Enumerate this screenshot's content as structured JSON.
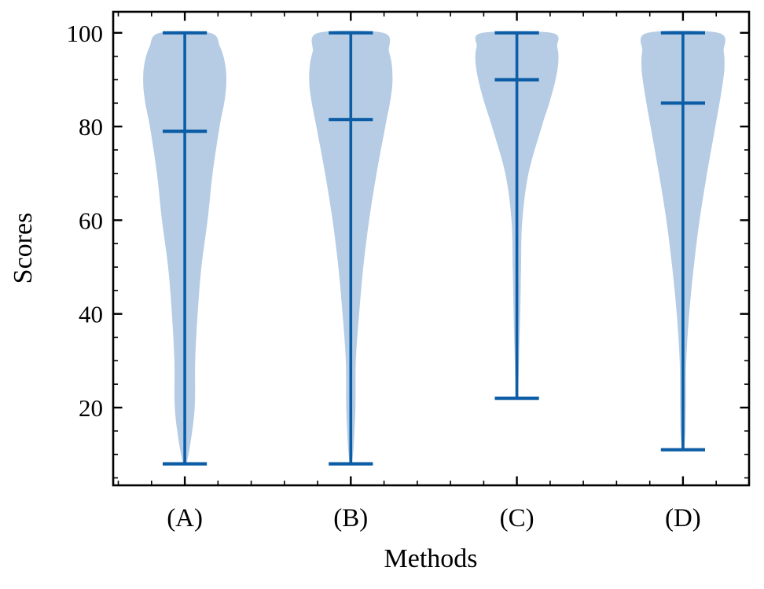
{
  "figure": {
    "xlabel": "Methods",
    "ylabel": "Scores"
  },
  "chart_data": {
    "type": "violin",
    "title": "",
    "xlabel": "Methods",
    "ylabel": "Scores",
    "categories": [
      "(A)",
      "(B)",
      "(C)",
      "(D)"
    ],
    "x_positions": [
      1,
      2,
      3,
      4
    ],
    "y_ticks_major": [
      20,
      40,
      60,
      80,
      100
    ],
    "y_minor_step": 5,
    "x_minor_step": 0.2,
    "xlim": [
      0.569,
      4.398
    ],
    "ylim": [
      3.4,
      104.5
    ],
    "grid": false,
    "legend": null,
    "tick_style": "inward-all-sides",
    "colors": {
      "line": "#0C5DA5",
      "fill": "#B5CCE4",
      "axis": "#000000",
      "background": "#FFFFFF"
    },
    "violin_max_halfwidth": 0.25,
    "cap_halfwidth": 0.133,
    "series": [
      {
        "category": "(A)",
        "position": 1,
        "min": 8,
        "max": 100,
        "mean": 79,
        "profile": [
          [
            8,
            0.04
          ],
          [
            12,
            0.13
          ],
          [
            20,
            0.24
          ],
          [
            30,
            0.25
          ],
          [
            40,
            0.31
          ],
          [
            50,
            0.4
          ],
          [
            60,
            0.55
          ],
          [
            70,
            0.67
          ],
          [
            80,
            0.84
          ],
          [
            85,
            0.95
          ],
          [
            89,
            1.0
          ],
          [
            93,
            0.98
          ],
          [
            97,
            0.85
          ],
          [
            100,
            0.6
          ]
        ]
      },
      {
        "category": "(B)",
        "position": 2,
        "min": 8,
        "max": 100,
        "mean": 81.5,
        "profile": [
          [
            8,
            0.03
          ],
          [
            12,
            0.07
          ],
          [
            20,
            0.11
          ],
          [
            30,
            0.12
          ],
          [
            40,
            0.2
          ],
          [
            50,
            0.3
          ],
          [
            60,
            0.44
          ],
          [
            70,
            0.62
          ],
          [
            80,
            0.83
          ],
          [
            85,
            0.94
          ],
          [
            89,
            1.0
          ],
          [
            93,
            0.99
          ],
          [
            96,
            0.92
          ],
          [
            100,
            0.78
          ]
        ]
      },
      {
        "category": "(C)",
        "position": 3,
        "min": 22,
        "max": 100,
        "mean": 90,
        "profile": [
          [
            22,
            0.03
          ],
          [
            30,
            0.05
          ],
          [
            40,
            0.08
          ],
          [
            50,
            0.1
          ],
          [
            60,
            0.13
          ],
          [
            70,
            0.28
          ],
          [
            80,
            0.6
          ],
          [
            85,
            0.78
          ],
          [
            90,
            0.93
          ],
          [
            94,
            1.0
          ],
          [
            97,
            0.97
          ],
          [
            100,
            0.83
          ]
        ]
      },
      {
        "category": "(D)",
        "position": 4,
        "min": 11,
        "max": 100,
        "mean": 85,
        "profile": [
          [
            11,
            0.03
          ],
          [
            15,
            0.06
          ],
          [
            20,
            0.07
          ],
          [
            30,
            0.08
          ],
          [
            40,
            0.15
          ],
          [
            50,
            0.26
          ],
          [
            60,
            0.4
          ],
          [
            70,
            0.58
          ],
          [
            80,
            0.78
          ],
          [
            85,
            0.88
          ],
          [
            90,
            0.97
          ],
          [
            93,
            1.0
          ],
          [
            96,
            0.98
          ],
          [
            100,
            0.85
          ]
        ]
      }
    ]
  }
}
